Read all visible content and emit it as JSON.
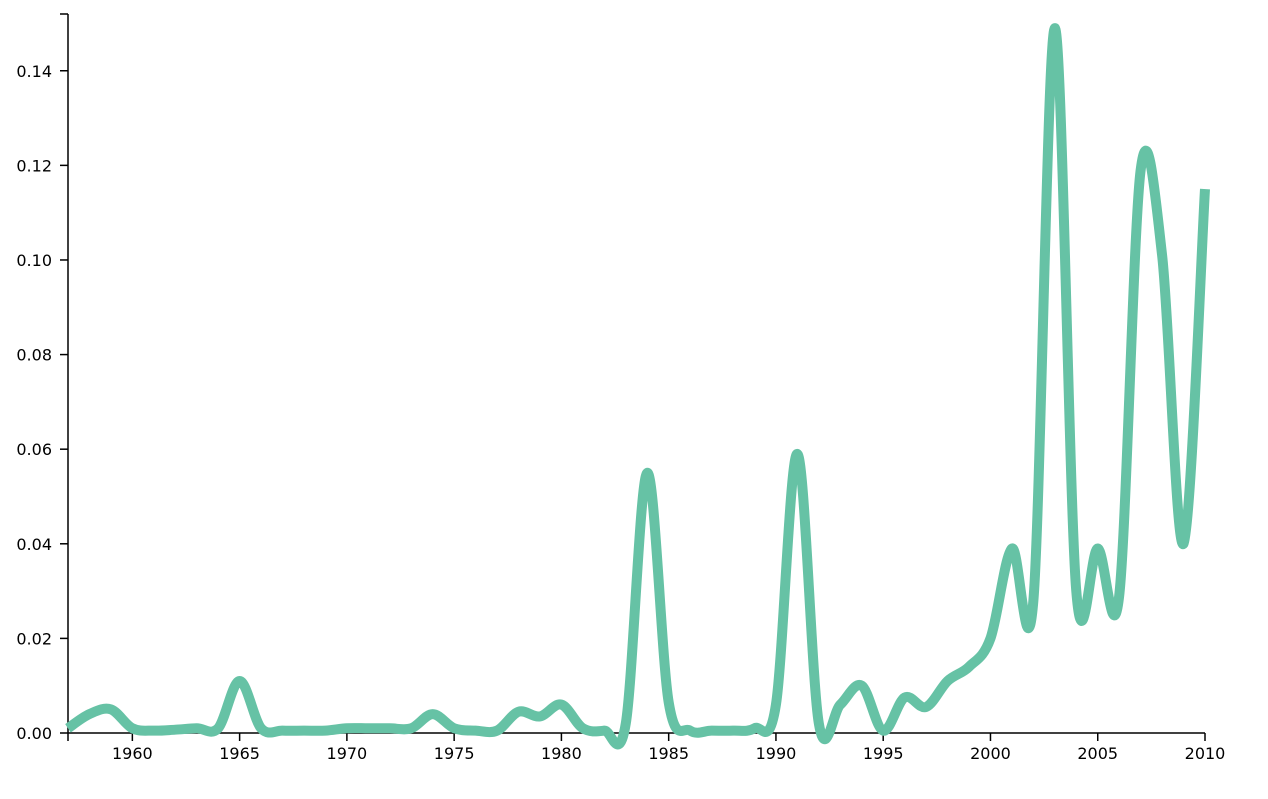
{
  "chart_data": {
    "type": "line",
    "title": "",
    "xlabel": "",
    "ylabel": "",
    "xlim": [
      1957,
      2010
    ],
    "ylim": [
      0,
      0.152
    ],
    "grid": false,
    "line_color": "#66c2a5",
    "x_ticks": [
      1960,
      1965,
      1970,
      1975,
      1980,
      1985,
      1990,
      1995,
      2000,
      2005,
      2010
    ],
    "x_tick_labels": [
      "1960",
      "1965",
      "1970",
      "1975",
      "1980",
      "1985",
      "1990",
      "1995",
      "2000",
      "2005",
      "2010"
    ],
    "y_ticks": [
      0,
      0.02,
      0.04,
      0.06,
      0.08,
      0.1,
      0.12,
      0.14
    ],
    "y_tick_labels": [
      "0.00",
      "0.02",
      "0.04",
      "0.06",
      "0.08",
      "0.10",
      "0.12",
      "0.14"
    ],
    "series": [
      {
        "x": [
          1957,
          1958,
          1959,
          1960,
          1961,
          1962,
          1963,
          1964,
          1965,
          1966,
          1967,
          1968,
          1969,
          1970,
          1971,
          1972,
          1973,
          1974,
          1975,
          1976,
          1977,
          1978,
          1979,
          1980,
          1981,
          1982,
          1983,
          1984,
          1985,
          1986,
          1987,
          1988,
          1989,
          1990,
          1991,
          1992,
          1993,
          1994,
          1995,
          1996,
          1997,
          1998,
          1999,
          2000,
          2001,
          2002,
          2003,
          2004,
          2005,
          2006,
          2007,
          2008,
          2009,
          2010
        ],
        "values": [
          0.001,
          0.004,
          0.005,
          0.001,
          0.0005,
          0.0007,
          0.001,
          0.001,
          0.011,
          0.001,
          0.0005,
          0.0005,
          0.0005,
          0.001,
          0.001,
          0.001,
          0.001,
          0.004,
          0.001,
          0.0005,
          0.0005,
          0.0045,
          0.0035,
          0.006,
          0.001,
          0.0005,
          0.002,
          0.055,
          0.0065,
          0.0005,
          0.0005,
          0.0005,
          0.001,
          0.006,
          0.059,
          0.002,
          0.006,
          0.01,
          0.0005,
          0.0075,
          0.0055,
          0.011,
          0.014,
          0.02,
          0.039,
          0.028,
          0.149,
          0.03,
          0.039,
          0.029,
          0.119,
          0.101,
          0.04,
          0.115
        ]
      }
    ]
  }
}
